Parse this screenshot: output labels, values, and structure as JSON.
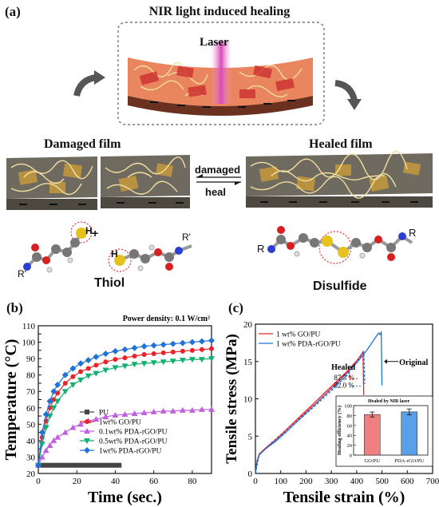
{
  "panel_a": {
    "label": "(a)",
    "top_title": "NIR light induced healing",
    "laser": "Laser",
    "damaged_film": "Damaged film",
    "healed_film": "Healed film",
    "arrow_top": "damaged",
    "arrow_bottom": "heal",
    "thiol": "Thiol",
    "disulfide": "Disulfide",
    "atoms": {
      "h": "H",
      "plus": "+",
      "r": "R",
      "r_prime": "R'"
    }
  },
  "colors": {
    "film_top": "#e9855f",
    "film_side": "#4d4840",
    "film_gray": "#6f6a60",
    "gold": "#c79a3c",
    "wire": "#f2dfa0",
    "laser": "#d64ab8",
    "sulfur": "#e8c21c",
    "oxygen": "#d82020",
    "nitrogen": "#2c3fd0",
    "carbon": "#777777",
    "hydrogen": "#e0e0e0",
    "red_series": "#e8242a",
    "blue_series": "#1e72d8"
  },
  "chart_data": [
    {
      "panel": "(b)",
      "type": "line",
      "annotation": "Power density: 0.1 W/cm²",
      "xlabel": "Time (sec.)",
      "ylabel": "Temperature (°C)",
      "xlim": [
        0,
        90
      ],
      "ylim": [
        20,
        110
      ],
      "xticks": [
        0,
        20,
        40,
        60,
        80
      ],
      "yticks": [
        20,
        25,
        30,
        35,
        40,
        45,
        50,
        55,
        60,
        65,
        70,
        75,
        80,
        85,
        90,
        95,
        100,
        105,
        110
      ],
      "legend_position": "bottom-center",
      "series": [
        {
          "name": "PU",
          "color": "#444444",
          "marker": "square",
          "x": [
            0,
            2,
            4,
            6,
            8,
            10,
            12,
            14,
            16,
            18,
            20,
            22,
            24,
            26,
            28,
            30,
            32,
            34,
            36,
            38,
            40,
            42
          ],
          "y": [
            25,
            25,
            25,
            25,
            25,
            25,
            25,
            25,
            25,
            25,
            25,
            25,
            25,
            25,
            25,
            25,
            25,
            25,
            25,
            25,
            25,
            25
          ]
        },
        {
          "name": "1wt% GO/PU",
          "color": "#e8242a",
          "marker": "circle",
          "x": [
            0,
            2,
            4,
            6,
            8,
            10,
            14,
            18,
            22,
            26,
            30,
            35,
            40,
            45,
            50,
            55,
            60,
            65,
            70,
            75,
            80,
            85,
            90
          ],
          "y": [
            25,
            42,
            52,
            60,
            65,
            69,
            75,
            79,
            82,
            84,
            86,
            88,
            89.5,
            90.5,
            91.5,
            92.5,
            93,
            93.5,
            94,
            94.5,
            95,
            95.5,
            96
          ]
        },
        {
          "name": "0.1wt% PDA-rGO/PU",
          "color": "#c060e0",
          "marker": "triangle-up",
          "x": [
            0,
            2,
            4,
            6,
            8,
            10,
            14,
            18,
            22,
            26,
            30,
            35,
            40,
            45,
            50,
            55,
            60,
            65,
            70,
            75,
            80,
            85,
            90
          ],
          "y": [
            25,
            30,
            34,
            37,
            40,
            42,
            45,
            48,
            50,
            52,
            53,
            54.5,
            55.5,
            56,
            56.5,
            57,
            57.5,
            58,
            58,
            58.5,
            58.5,
            59,
            59
          ]
        },
        {
          "name": "0.5wt% PDA-rGO/PU",
          "color": "#10b070",
          "marker": "triangle-down",
          "x": [
            0,
            2,
            4,
            6,
            8,
            10,
            14,
            18,
            22,
            26,
            30,
            35,
            40,
            45,
            50,
            55,
            60,
            65,
            70,
            75,
            80,
            85,
            90
          ],
          "y": [
            25,
            38,
            48,
            55,
            60,
            64,
            70,
            74,
            77,
            79.5,
            81,
            83,
            84.5,
            85.5,
            86.5,
            87,
            87.5,
            88,
            88.5,
            89,
            89.5,
            89.5,
            90
          ]
        },
        {
          "name": "1wt% PDA-rGO/PU",
          "color": "#1e72d8",
          "marker": "diamond",
          "x": [
            0,
            2,
            4,
            6,
            8,
            10,
            14,
            18,
            22,
            26,
            30,
            35,
            40,
            45,
            50,
            55,
            60,
            65,
            70,
            75,
            80,
            85,
            90
          ],
          "y": [
            25,
            45,
            56,
            64,
            70,
            74,
            80,
            84,
            87,
            89,
            91,
            93,
            94.5,
            95.5,
            96.5,
            97.5,
            98,
            98.5,
            99,
            99.5,
            100,
            100.5,
            101
          ]
        }
      ]
    },
    {
      "panel": "(c)",
      "type": "line",
      "xlabel": "Tensile strain (%)",
      "ylabel": "Tensile stress (MPa)",
      "xlim": [
        0,
        700
      ],
      "ylim": [
        0,
        20
      ],
      "xticks": [
        0,
        100,
        200,
        300,
        400,
        500,
        600,
        700
      ],
      "yticks": [
        0,
        5,
        10,
        15,
        20
      ],
      "legend_position": "top-left",
      "annotations": {
        "healed": "Healed",
        "pct1": "87.3 %",
        "pct2": "82.0 %",
        "original": "Original"
      },
      "series": [
        {
          "name": "1 wt% GO/PU",
          "color": "#e8242a",
          "x": [
            0,
            5,
            15,
            40,
            80,
            120,
            160,
            200,
            240,
            280,
            320,
            360,
            400,
            420,
            425,
            428
          ],
          "y": [
            0,
            1.5,
            2.6,
            3.4,
            4.5,
            5.8,
            7.1,
            8.4,
            9.7,
            11.0,
            12.3,
            13.6,
            15.1,
            16.0,
            16.3,
            10.5
          ]
        },
        {
          "name": "1 wt% PDA-rGO/PU",
          "color": "#1e72d8",
          "x": [
            0,
            5,
            15,
            40,
            80,
            120,
            160,
            200,
            240,
            280,
            320,
            360,
            400,
            440,
            470,
            480,
            488,
            492,
            497,
            500
          ],
          "y": [
            0,
            1.4,
            2.5,
            3.3,
            4.3,
            5.5,
            6.8,
            8.1,
            9.4,
            10.7,
            12.0,
            13.4,
            14.8,
            16.5,
            18.0,
            18.5,
            18.8,
            18.6,
            18.9,
            11.8
          ]
        },
        {
          "name": "healed 1 wt% GO/PU",
          "color": "#e8242a",
          "style": "dashed",
          "x": [
            0,
            15,
            60,
            120,
            180,
            240,
            300,
            340,
            370,
            375
          ],
          "y": [
            0,
            2.6,
            4.0,
            5.8,
            7.6,
            9.4,
            11.4,
            12.8,
            13.8,
            12.5
          ]
        },
        {
          "name": "healed 1 wt% PDA-rGO/PU",
          "color": "#1e72d8",
          "style": "dashed",
          "x": [
            0,
            15,
            60,
            120,
            180,
            240,
            300,
            360,
            420,
            428,
            432
          ],
          "y": [
            0,
            2.5,
            3.9,
            5.6,
            7.4,
            9.2,
            11.1,
            13.1,
            15.8,
            16.2,
            12.0
          ]
        }
      ],
      "inset": {
        "title": "Healed by NIR laser",
        "ylabel": "Healing efficiency (%)",
        "ylim": [
          0,
          100
        ],
        "yticks": [
          0,
          20,
          40,
          60,
          80,
          100
        ],
        "categories": [
          "GO/PU",
          "PDA-rGO/PU"
        ],
        "values": [
          82.0,
          87.3
        ],
        "errors": [
          5,
          6
        ],
        "colors": [
          "#f08080",
          "#5aa0e8"
        ]
      }
    }
  ]
}
